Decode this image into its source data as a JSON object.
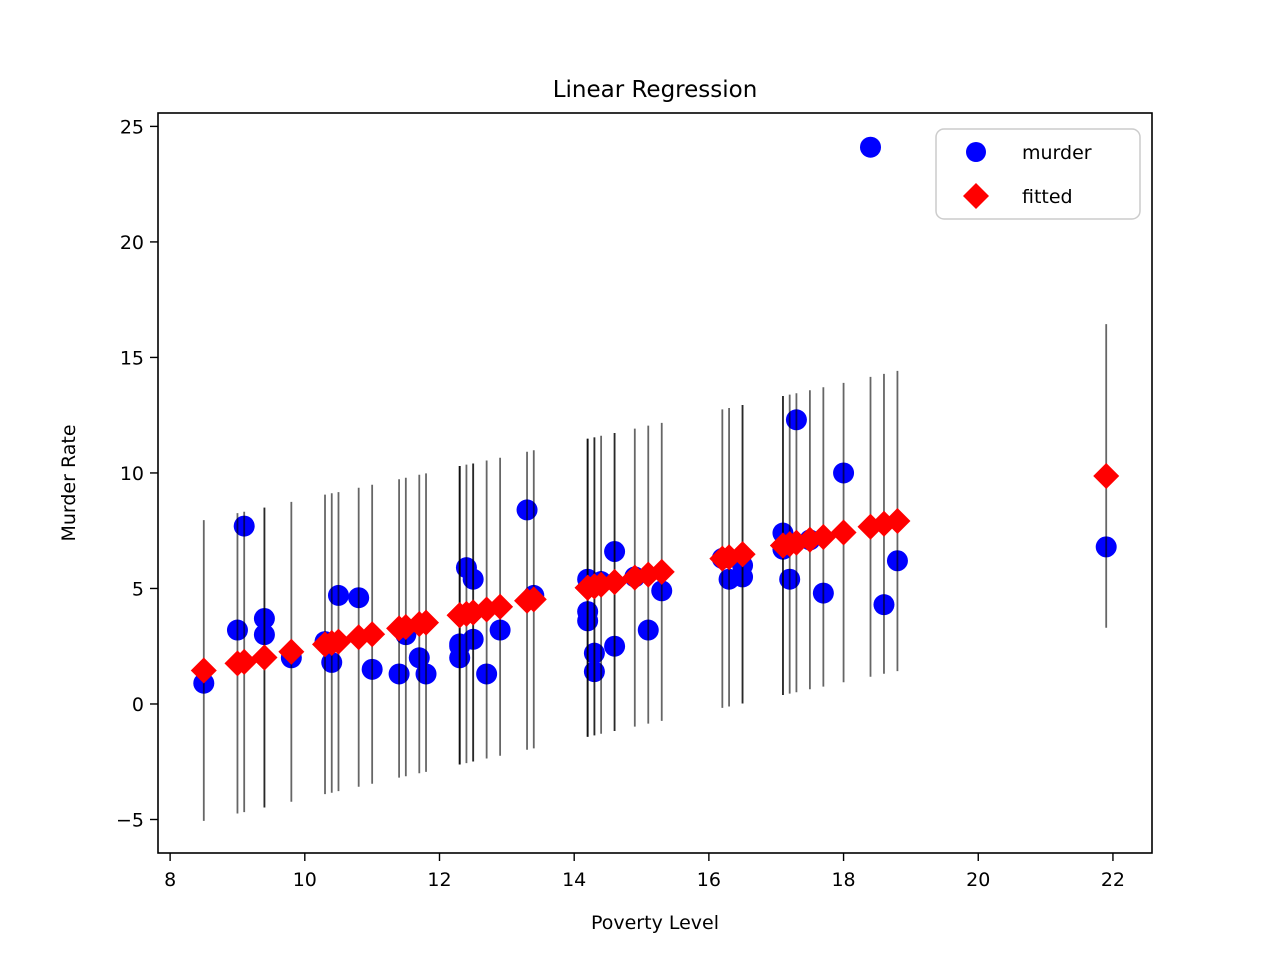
{
  "figure": {
    "title": "Linear Regression",
    "xlabel": "Poverty Level",
    "ylabel": "Murder Rate"
  },
  "legend": {
    "position": "upper right",
    "items": [
      {
        "label": "murder",
        "marker": "circle",
        "color": "#0000ff"
      },
      {
        "label": "fitted",
        "marker": "diamond",
        "color": "#ff0000"
      }
    ]
  },
  "chart_data": {
    "type": "scatter",
    "title": "Linear Regression",
    "xlabel": "Poverty Level",
    "ylabel": "Murder Rate",
    "xlim": [
      7.82,
      22.58
    ],
    "ylim": [
      -6.45,
      25.58
    ],
    "xticks": [
      8,
      10,
      12,
      14,
      16,
      18,
      20,
      22
    ],
    "yticks": [
      -5,
      0,
      5,
      10,
      15,
      20,
      25
    ],
    "grid": false,
    "legend_position": "upper right",
    "errorbar_color": "#000000",
    "errorbar_opacity": 0.6,
    "series": [
      {
        "name": "murder",
        "marker": "circle",
        "color": "#0000ff",
        "points": [
          [
            8.5,
            0.9
          ],
          [
            9.0,
            3.2
          ],
          [
            9.1,
            7.7
          ],
          [
            9.4,
            3.0
          ],
          [
            9.4,
            3.7
          ],
          [
            9.8,
            2.0
          ],
          [
            10.3,
            2.7
          ],
          [
            10.4,
            1.8
          ],
          [
            10.5,
            4.7
          ],
          [
            10.8,
            4.6
          ],
          [
            11.0,
            1.5
          ],
          [
            11.4,
            1.3
          ],
          [
            11.5,
            3.0
          ],
          [
            11.7,
            2.0
          ],
          [
            11.8,
            1.3
          ],
          [
            12.3,
            2.0
          ],
          [
            12.3,
            2.5
          ],
          [
            12.3,
            2.6
          ],
          [
            12.4,
            5.9
          ],
          [
            12.5,
            5.4
          ],
          [
            12.5,
            2.8
          ],
          [
            12.7,
            1.3
          ],
          [
            12.9,
            3.2
          ],
          [
            13.3,
            8.4
          ],
          [
            13.4,
            4.7
          ],
          [
            14.2,
            5.4
          ],
          [
            14.2,
            4.0
          ],
          [
            14.2,
            3.6
          ],
          [
            14.3,
            1.4
          ],
          [
            14.3,
            2.2
          ],
          [
            14.4,
            5.3
          ],
          [
            14.6,
            6.6
          ],
          [
            14.6,
            2.5
          ],
          [
            14.9,
            5.5
          ],
          [
            15.1,
            3.2
          ],
          [
            15.3,
            4.9
          ],
          [
            16.2,
            6.3
          ],
          [
            16.3,
            5.4
          ],
          [
            16.5,
            6.0
          ],
          [
            16.5,
            5.5
          ],
          [
            17.1,
            6.7
          ],
          [
            17.1,
            7.4
          ],
          [
            17.2,
            5.4
          ],
          [
            17.3,
            12.3
          ],
          [
            17.5,
            7.1
          ],
          [
            17.7,
            4.8
          ],
          [
            18.0,
            10.0
          ],
          [
            18.4,
            24.1
          ],
          [
            18.6,
            4.3
          ],
          [
            18.8,
            6.2
          ],
          [
            21.9,
            6.8
          ]
        ]
      },
      {
        "name": "fitted",
        "marker": "diamond",
        "color": "#ff0000",
        "points": [
          [
            8.5,
            1.45
          ],
          [
            9.0,
            1.76
          ],
          [
            9.1,
            1.82
          ],
          [
            9.4,
            2.01
          ],
          [
            9.4,
            2.01
          ],
          [
            9.8,
            2.26
          ],
          [
            10.3,
            2.58
          ],
          [
            10.4,
            2.64
          ],
          [
            10.5,
            2.7
          ],
          [
            10.8,
            2.89
          ],
          [
            11.0,
            3.02
          ],
          [
            11.4,
            3.27
          ],
          [
            11.5,
            3.33
          ],
          [
            11.7,
            3.46
          ],
          [
            11.8,
            3.52
          ],
          [
            12.3,
            3.84
          ],
          [
            12.3,
            3.84
          ],
          [
            12.3,
            3.84
          ],
          [
            12.4,
            3.9
          ],
          [
            12.5,
            3.96
          ],
          [
            12.5,
            3.96
          ],
          [
            12.7,
            4.09
          ],
          [
            12.9,
            4.21
          ],
          [
            13.3,
            4.47
          ],
          [
            13.4,
            4.53
          ],
          [
            14.2,
            5.03
          ],
          [
            14.2,
            5.03
          ],
          [
            14.2,
            5.03
          ],
          [
            14.3,
            5.09
          ],
          [
            14.3,
            5.09
          ],
          [
            14.4,
            5.16
          ],
          [
            14.6,
            5.28
          ],
          [
            14.6,
            5.28
          ],
          [
            14.9,
            5.47
          ],
          [
            15.1,
            5.6
          ],
          [
            15.3,
            5.72
          ],
          [
            16.2,
            6.29
          ],
          [
            16.3,
            6.35
          ],
          [
            16.5,
            6.48
          ],
          [
            16.5,
            6.48
          ],
          [
            17.1,
            6.86
          ],
          [
            17.1,
            6.86
          ],
          [
            17.2,
            6.92
          ],
          [
            17.3,
            6.98
          ],
          [
            17.5,
            7.11
          ],
          [
            17.7,
            7.23
          ],
          [
            18.0,
            7.42
          ],
          [
            18.4,
            7.67
          ],
          [
            18.6,
            7.8
          ],
          [
            18.8,
            7.92
          ],
          [
            21.9,
            9.87
          ]
        ],
        "yerr": [
          6.51,
          6.5,
          6.5,
          6.49,
          6.49,
          6.49,
          6.48,
          6.48,
          6.47,
          6.47,
          6.47,
          6.46,
          6.46,
          6.46,
          6.46,
          6.46,
          6.46,
          6.46,
          6.46,
          6.45,
          6.45,
          6.45,
          6.45,
          6.45,
          6.45,
          6.45,
          6.45,
          6.45,
          6.45,
          6.45,
          6.45,
          6.45,
          6.45,
          6.45,
          6.45,
          6.45,
          6.46,
          6.46,
          6.46,
          6.46,
          6.47,
          6.47,
          6.47,
          6.47,
          6.47,
          6.48,
          6.48,
          6.49,
          6.49,
          6.5,
          6.57
        ],
        "regression_line": {
          "slope": 0.629,
          "intercept": -3.9
        }
      }
    ]
  }
}
